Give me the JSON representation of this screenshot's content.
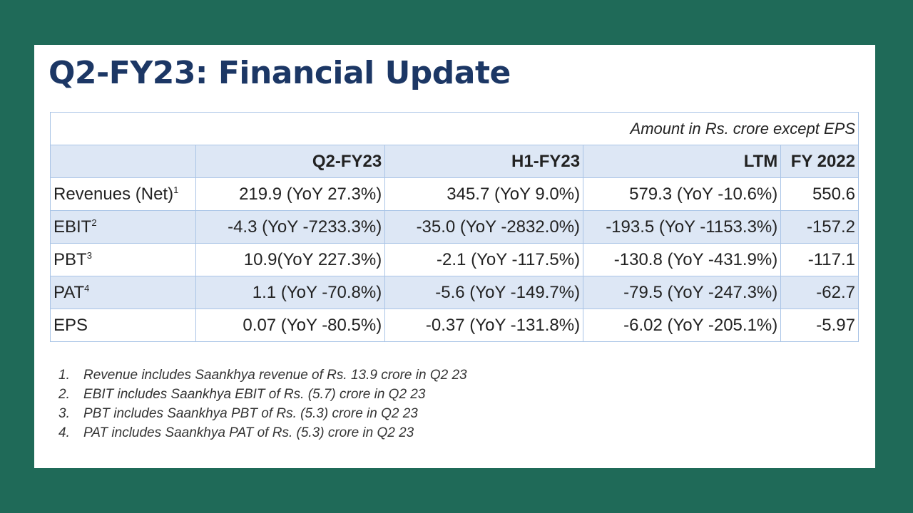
{
  "title": "Q2-FY23: Financial Update",
  "table": {
    "note": "Amount in Rs. crore except EPS",
    "headers": [
      "",
      "Q2-FY23",
      "H1-FY23",
      "LTM",
      "FY 2022"
    ],
    "rows": [
      {
        "label": "Revenues (Net)",
        "sup": "1",
        "values": [
          "219.9 (YoY 27.3%)",
          "345.7 (YoY 9.0%)",
          "579.3 (YoY -10.6%)",
          "550.6"
        ]
      },
      {
        "label": "EBIT",
        "sup": "2",
        "values": [
          "-4.3 (YoY -7233.3%)",
          "-35.0 (YoY -2832.0%)",
          "-193.5 (YoY -1153.3%)",
          "-157.2"
        ]
      },
      {
        "label": "PBT",
        "sup": "3",
        "values": [
          "10.9(YoY 227.3%)",
          "-2.1 (YoY -117.5%)",
          "-130.8 (YoY -431.9%)",
          "-117.1"
        ]
      },
      {
        "label": "PAT",
        "sup": "4",
        "values": [
          "1.1 (YoY -70.8%)",
          "-5.6 (YoY -149.7%)",
          "-79.5 (YoY -247.3%)",
          "-62.7"
        ]
      },
      {
        "label": "EPS",
        "sup": "",
        "values": [
          "0.07 (YoY -80.5%)",
          "-0.37 (YoY -131.8%)",
          "-6.02 (YoY -205.1%)",
          "-5.97"
        ]
      }
    ]
  },
  "footnotes": [
    {
      "num": "1.",
      "text": "Revenue includes Saankhya revenue of Rs. 13.9 crore in Q2 23"
    },
    {
      "num": "2.",
      "text": "EBIT includes Saankhya EBIT of Rs. (5.7) crore in Q2 23"
    },
    {
      "num": "3.",
      "text": "PBT includes Saankhya PBT of Rs. (5.3) crore in Q2 23"
    },
    {
      "num": "4.",
      "text": "PAT includes Saankhya PAT of Rs. (5.3) crore in Q2 23"
    }
  ],
  "colors": {
    "background": "#1f6a58",
    "title": "#1c3765",
    "header_fill": "#dde7f5",
    "border": "#a9c4e6"
  }
}
